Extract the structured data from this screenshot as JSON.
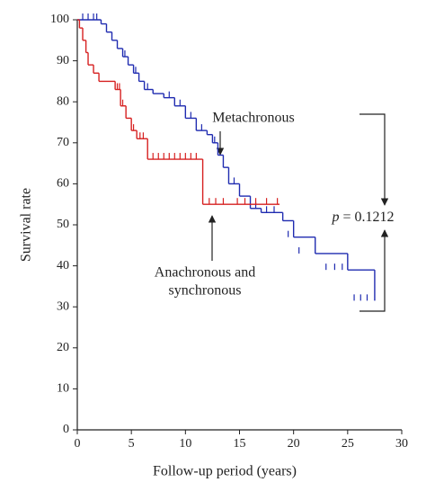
{
  "chart_data": {
    "type": "step",
    "xlabel": "Follow-up period (years)",
    "ylabel": "Survival rate",
    "xlim": [
      0,
      30
    ],
    "xticks": [
      0,
      5,
      10,
      15,
      20,
      25,
      30
    ],
    "ylim": [
      0,
      100
    ],
    "yticks": [
      0,
      10,
      20,
      30,
      40,
      50,
      60,
      70,
      80,
      90,
      100
    ],
    "annotations": [
      "Metachronous",
      "Anachronous and",
      "synchronous"
    ],
    "p_symbol": "p",
    "p_text": "= 0.1212",
    "series": [
      {
        "name": "Metachronous",
        "color": "#1f2bb0",
        "x": [
          0,
          2.2,
          2.7,
          3.2,
          3.7,
          4.2,
          4.7,
          5.2,
          5.7,
          6.2,
          7,
          8,
          9,
          10,
          11,
          12,
          12.5,
          13,
          13.5,
          14,
          15,
          16,
          17,
          19,
          20,
          22,
          25,
          27.5
        ],
        "values": [
          100,
          99,
          97,
          95,
          93,
          91,
          89,
          87,
          85,
          83,
          82,
          81,
          79,
          76,
          73,
          72,
          70,
          67,
          64,
          60,
          57,
          54,
          53,
          51,
          47,
          43,
          39,
          31.5
        ],
        "censor_x": [
          0.5,
          1,
          1.5,
          1.8,
          4.4,
          5.4,
          6.5,
          8.5,
          9.5,
          10.5,
          11.5,
          12.7,
          14.5,
          16.5,
          17.5,
          18.2,
          19.5,
          20.5,
          23,
          23.8,
          24.5,
          25.6,
          26.2,
          26.8
        ],
        "censor_values": [
          100,
          100,
          100,
          100,
          91,
          87,
          83,
          81,
          79,
          76,
          73,
          70,
          60,
          54,
          53,
          53,
          47,
          43,
          39,
          39,
          39,
          31.5,
          31.5,
          31.5
        ]
      },
      {
        "name": "Anachronous and synchronous",
        "color": "#d62020",
        "x": [
          0,
          0.2,
          0.5,
          0.8,
          1,
          1.5,
          2,
          3.5,
          4,
          4.5,
          5,
          5.5,
          6.5,
          11.6,
          18.7
        ],
        "values": [
          100,
          98,
          95,
          92,
          89,
          87,
          85,
          83,
          79,
          76,
          73,
          71,
          66,
          55,
          55
        ],
        "censor_x": [
          3.7,
          3.9,
          4.2,
          5.2,
          5.8,
          6.1,
          7,
          7.5,
          8,
          8.5,
          9,
          9.5,
          10,
          10.5,
          11,
          12.2,
          12.8,
          13.5,
          14.8,
          15.5,
          16.5,
          17.5,
          18.5
        ],
        "censor_values": [
          83,
          83,
          79,
          73,
          71,
          71,
          66,
          66,
          66,
          66,
          66,
          66,
          66,
          66,
          66,
          55,
          55,
          55,
          55,
          55,
          55,
          55,
          55
        ]
      }
    ]
  }
}
